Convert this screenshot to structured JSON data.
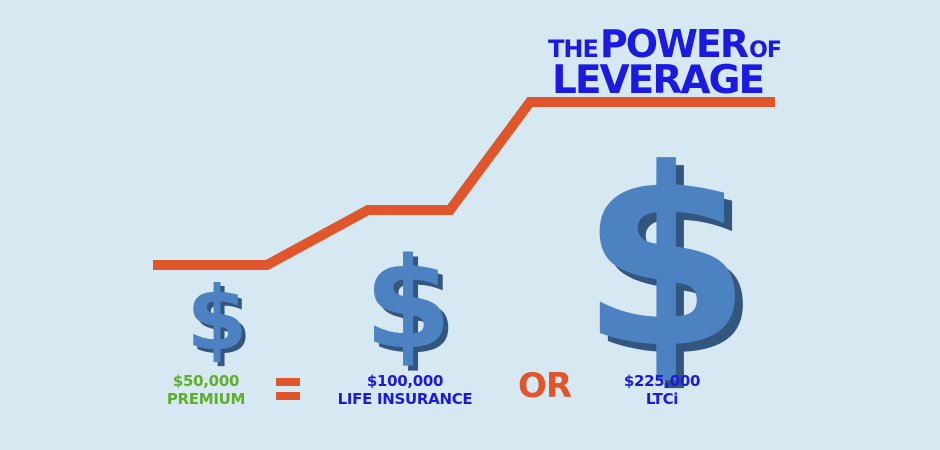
{
  "title": {
    "the": "THE",
    "power": "POWER",
    "of": "OF",
    "leverage": "LEVERAGE"
  },
  "colors": {
    "background": "#d6e9f2",
    "accent_orange": "#e0552a",
    "title_blue": "#1a1ae0",
    "green": "#5fae2c",
    "dollar_face": "#4c82c2",
    "dollar_side": "#33567f"
  },
  "items": [
    {
      "amount": "$50,000",
      "label": "PREMIUM",
      "icon": "dollar-sign-small-icon"
    },
    {
      "amount": "$100,000",
      "label": "LIFE INSURANCE",
      "icon": "dollar-sign-medium-icon"
    },
    {
      "amount": "$225,000",
      "label": "LTCi",
      "icon": "dollar-sign-large-icon"
    }
  ],
  "operators": {
    "or": "OR"
  }
}
